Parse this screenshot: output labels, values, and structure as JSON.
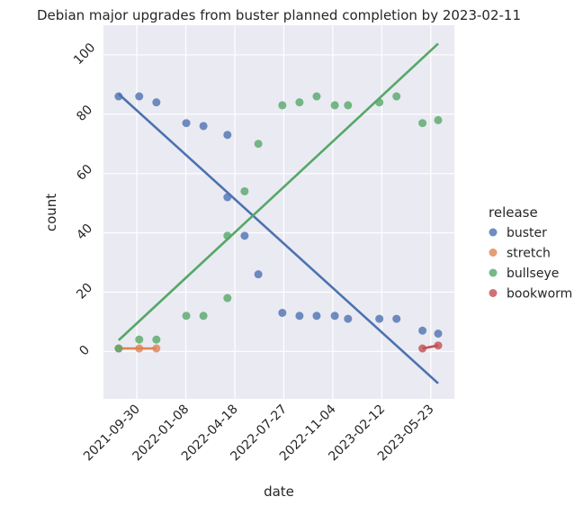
{
  "chart_data": {
    "type": "scatter",
    "title": "Debian major upgrades from buster planned completion by 2023-02-11",
    "xlabel": "date",
    "ylabel": "count",
    "xlim": [
      "2021-07-24",
      "2023-07-10"
    ],
    "ylim": [
      -16,
      110
    ],
    "xticks": [
      "2021-09-30",
      "2022-01-08",
      "2022-04-18",
      "2022-07-27",
      "2022-11-04",
      "2023-02-12",
      "2023-05-23"
    ],
    "yticks": [
      0,
      20,
      40,
      60,
      80,
      100
    ],
    "grid": true,
    "legend_title": "release",
    "legend_placement": "right",
    "regression": "linear fit per series",
    "series": [
      {
        "name": "buster",
        "color": "#4c72b0",
        "points": [
          [
            "2021-08-24",
            86
          ],
          [
            "2021-10-05",
            86
          ],
          [
            "2021-11-09",
            84
          ],
          [
            "2022-01-09",
            77
          ],
          [
            "2022-02-13",
            76
          ],
          [
            "2022-04-03",
            73
          ],
          [
            "2022-04-03",
            52
          ],
          [
            "2022-05-08",
            39
          ],
          [
            "2022-06-05",
            26
          ],
          [
            "2022-07-24",
            13
          ],
          [
            "2022-08-28",
            12
          ],
          [
            "2022-10-02",
            12
          ],
          [
            "2022-11-08",
            12
          ],
          [
            "2022-12-05",
            11
          ],
          [
            "2023-02-07",
            11
          ],
          [
            "2023-03-14",
            11
          ],
          [
            "2023-05-06",
            7
          ],
          [
            "2023-06-07",
            6
          ]
        ]
      },
      {
        "name": "stretch",
        "color": "#dd8452",
        "points": [
          [
            "2021-08-24",
            1
          ],
          [
            "2021-10-05",
            1
          ],
          [
            "2021-11-09",
            1
          ]
        ]
      },
      {
        "name": "bullseye",
        "color": "#55a868",
        "points": [
          [
            "2021-08-24",
            1
          ],
          [
            "2021-10-05",
            4
          ],
          [
            "2021-11-09",
            4
          ],
          [
            "2022-01-09",
            12
          ],
          [
            "2022-02-13",
            12
          ],
          [
            "2022-04-03",
            39
          ],
          [
            "2022-04-03",
            18
          ],
          [
            "2022-05-08",
            54
          ],
          [
            "2022-06-05",
            70
          ],
          [
            "2022-07-24",
            83
          ],
          [
            "2022-08-28",
            84
          ],
          [
            "2022-10-02",
            86
          ],
          [
            "2022-11-08",
            83
          ],
          [
            "2022-12-05",
            83
          ],
          [
            "2023-02-07",
            84
          ],
          [
            "2023-03-14",
            86
          ],
          [
            "2023-05-06",
            77
          ],
          [
            "2023-06-07",
            78
          ]
        ]
      },
      {
        "name": "bookworm",
        "color": "#c44e52",
        "points": [
          [
            "2023-05-06",
            1
          ],
          [
            "2023-06-07",
            2
          ]
        ]
      }
    ]
  }
}
